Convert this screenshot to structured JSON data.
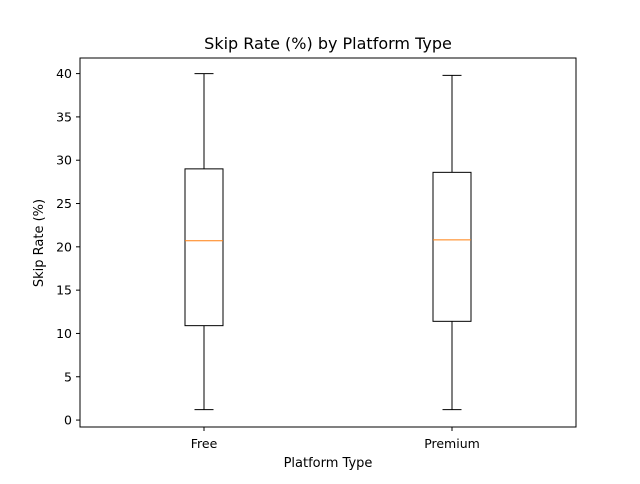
{
  "chart_data": {
    "type": "boxplot",
    "title": "Skip Rate (%) by Platform Type",
    "xlabel": "Platform Type",
    "ylabel": "Skip Rate (%)",
    "ylim": [
      -0.8,
      41.8
    ],
    "yticks": [
      0,
      5,
      10,
      15,
      20,
      25,
      30,
      35,
      40
    ],
    "categories": [
      "Free",
      "Premium"
    ],
    "boxes": [
      {
        "category": "Free",
        "whisker_low": 1.2,
        "q1": 10.9,
        "median": 20.7,
        "q3": 29.0,
        "whisker_high": 40.0
      },
      {
        "category": "Premium",
        "whisker_low": 1.2,
        "q1": 11.4,
        "median": 20.8,
        "q3": 28.6,
        "whisker_high": 39.8
      }
    ],
    "grid": false,
    "colors": {
      "box_edge": "#000000",
      "median": "#ff7f0e",
      "whisker": "#000000"
    }
  }
}
